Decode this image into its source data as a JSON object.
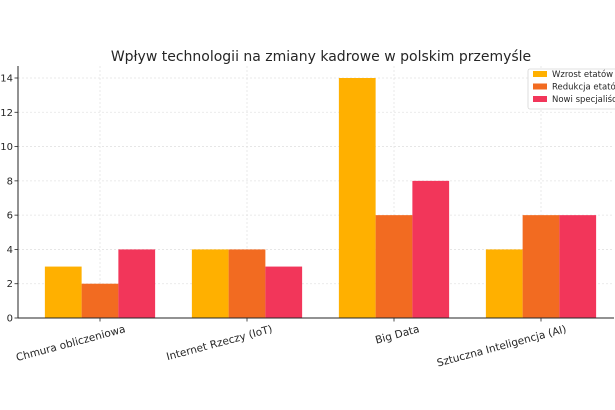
{
  "chart_data": {
    "type": "bar",
    "title": "Wpływ technologii na zmiany kadrowe w polskim przemyśle",
    "xlabel": "",
    "ylabel": "",
    "categories": [
      "Chmura obliczeniowa",
      "Internet Rzeczy (IoT)",
      "Big Data",
      "Sztuczna Inteligencja (AI)"
    ],
    "series": [
      {
        "name": "Wzrost etatów",
        "values": [
          3,
          4,
          14,
          4
        ],
        "color": "#FFB000"
      },
      {
        "name": "Redukcja etatów",
        "values": [
          2,
          4,
          6,
          6
        ],
        "color": "#F26B21"
      },
      {
        "name": "Nowi specjaliści",
        "values": [
          4,
          3,
          8,
          6
        ],
        "color": "#F2365A"
      }
    ],
    "ylim": [
      0,
      14.7
    ],
    "yticks": [
      "0",
      "2",
      "4",
      "6",
      "8",
      "10",
      "12",
      "14"
    ],
    "grid": true,
    "legend_position": "top-right"
  }
}
